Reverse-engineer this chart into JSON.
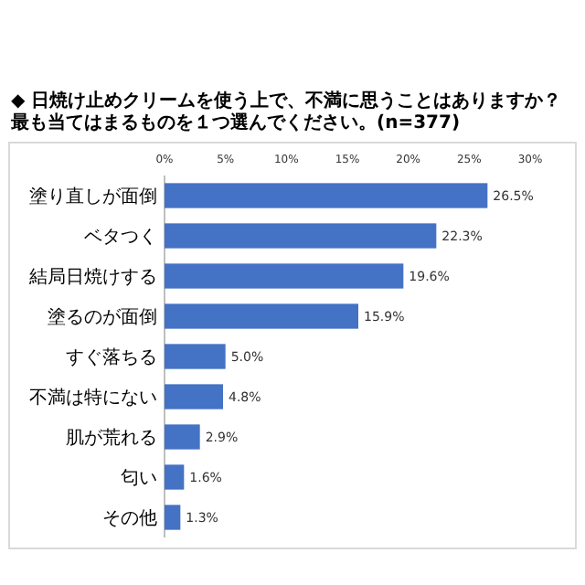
{
  "chart_data": {
    "type": "bar",
    "orientation": "horizontal",
    "title": "◆ 日焼け止めクリームを使う上で、不満に思うことはありますか？最も当てはまるものを１つ選んでください。(n=377)",
    "categories": [
      "塗り直しが面倒",
      "ベタつく",
      "結局日焼けする",
      "塗るのが面倒",
      "すぐ落ちる",
      "不満は特にない",
      "肌が荒れる",
      "匂い",
      "その他"
    ],
    "values": [
      26.5,
      22.3,
      19.6,
      15.9,
      5.0,
      4.8,
      2.9,
      1.6,
      1.3
    ],
    "value_labels": [
      "26.5%",
      "22.3%",
      "19.6%",
      "15.9%",
      "5.0%",
      "4.8%",
      "2.9%",
      "1.6%",
      "1.3%"
    ],
    "color": "#4472c4",
    "xlim": [
      0,
      30
    ],
    "xticks": [
      {
        "value": 0,
        "label": "0%"
      },
      {
        "value": 5,
        "label": "5%"
      },
      {
        "value": 10,
        "label": "10%"
      },
      {
        "value": 15,
        "label": "15%"
      },
      {
        "value": 20,
        "label": "20%"
      },
      {
        "value": 25,
        "label": "25%"
      },
      {
        "value": 30,
        "label": "30%"
      }
    ],
    "grid": false
  }
}
